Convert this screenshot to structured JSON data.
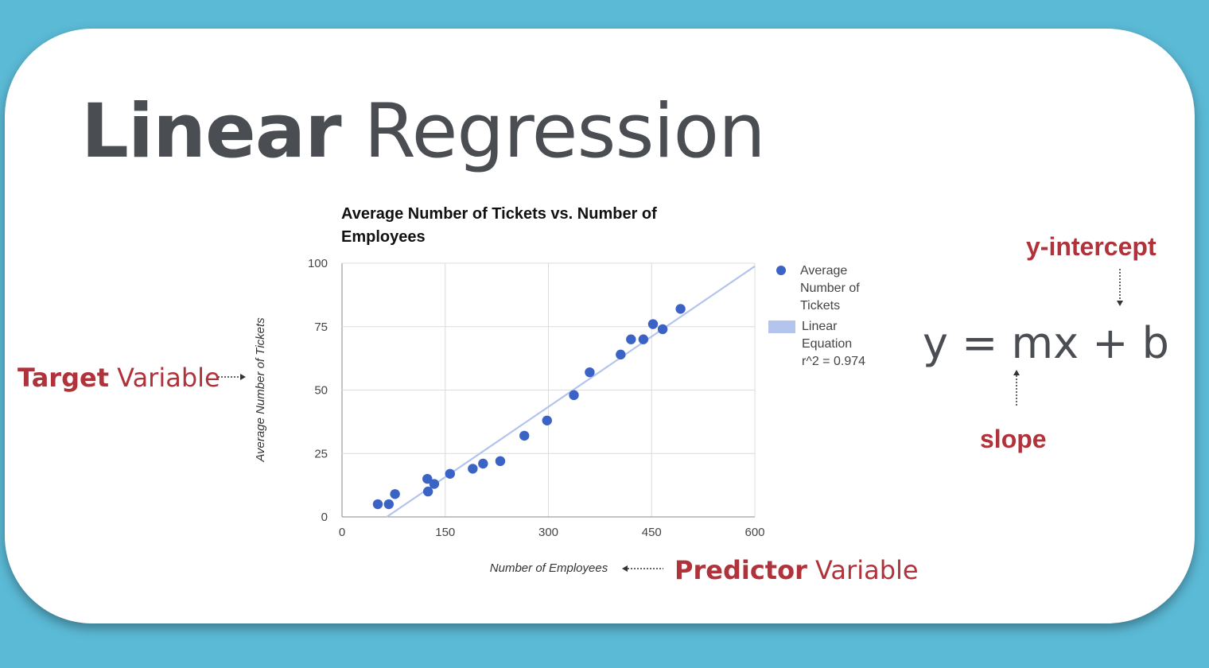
{
  "slide": {
    "title_bold": "Linear",
    "title_regular": "Regression"
  },
  "annotations": {
    "target_strong": "Target",
    "target_rest": " Variable",
    "predictor_strong": "Predictor",
    "predictor_rest": " Variable",
    "equation": "y = mx + b",
    "y_intercept": "y-intercept",
    "slope": "slope"
  },
  "colors": {
    "background": "#5bbad6",
    "accent_red": "#b0333b",
    "point_blue": "#3b63c6",
    "trend_blue": "#b3c5ec"
  },
  "chart_data": {
    "type": "scatter",
    "title": "Average Number of Tickets vs. Number of Employees",
    "xlabel": "Number of Employees",
    "ylabel": "Average Number of Tickets",
    "xlim": [
      0,
      600
    ],
    "ylim": [
      0,
      100
    ],
    "xticks": [
      0,
      150,
      300,
      450,
      600
    ],
    "yticks": [
      0,
      25,
      50,
      75,
      100
    ],
    "grid": true,
    "legend_position": "right",
    "series": [
      {
        "name": "Average Number of Tickets",
        "x": [
          52,
          68,
          77,
          124,
          125,
          134,
          157,
          190,
          205,
          230,
          265,
          298,
          337,
          360,
          405,
          420,
          438,
          452,
          466,
          492
        ],
        "y": [
          5,
          5,
          9,
          15,
          10,
          13,
          17,
          19,
          21,
          22,
          32,
          38,
          48,
          57,
          64,
          70,
          70,
          76,
          74,
          82
        ]
      }
    ],
    "trendline": {
      "name": "Linear Equation",
      "r2_label": "r^2 = 0.974",
      "x": [
        65,
        600
      ],
      "y": [
        0,
        98.8
      ]
    }
  }
}
